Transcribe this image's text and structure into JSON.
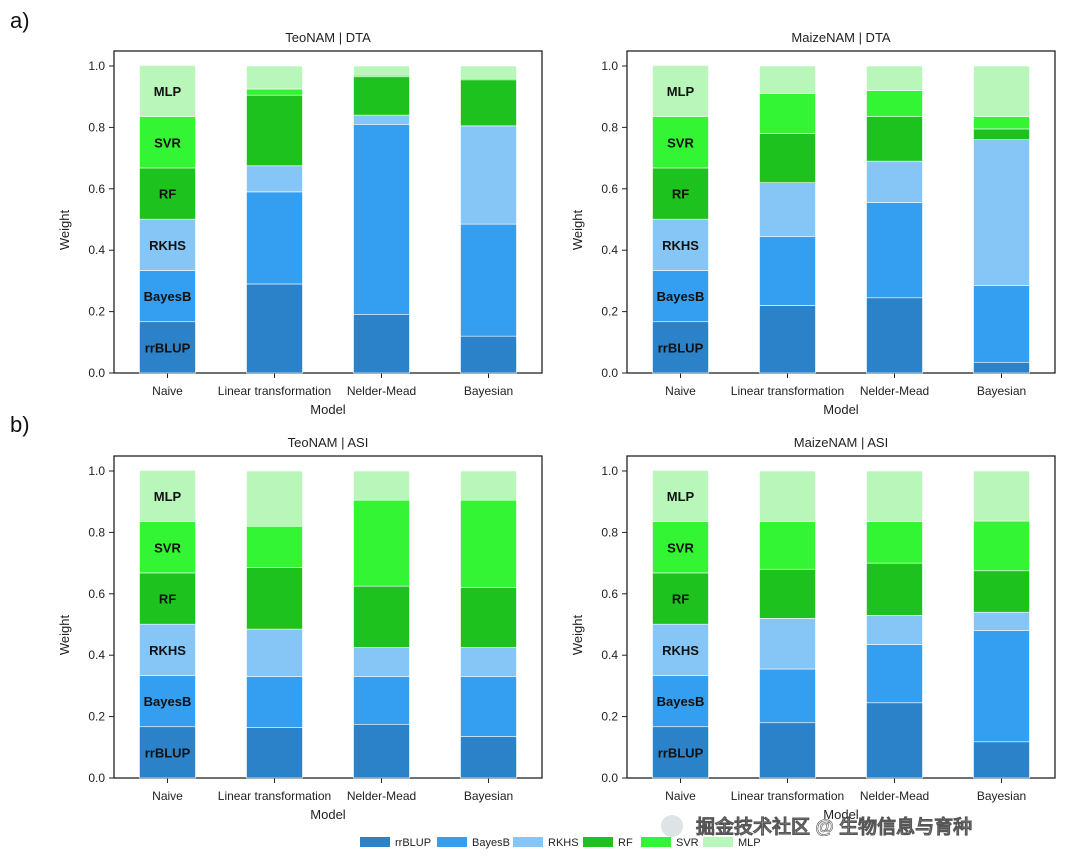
{
  "row_labels": [
    "a)",
    "b)"
  ],
  "colors": {
    "rrBLUP": "#2c82c9",
    "BayesB": "#349ff0",
    "RKHS": "#86c6f6",
    "RF": "#1ec21e",
    "SVR": "#33f533",
    "MLP": "#b9f6b9"
  },
  "legend": {
    "items": [
      "rrBLUP",
      "BayesB",
      "RKHS",
      "RF",
      "SVR",
      "MLP"
    ]
  },
  "watermark": {
    "text": "掘金技术社区 @ 生物信息与育种"
  },
  "chart_data": [
    {
      "type": "stacked-bar",
      "row": 0,
      "col": 0,
      "title": "TeoNAM | DTA",
      "xlabel": "Model",
      "ylabel": "Weight",
      "ylim": [
        0,
        1
      ],
      "yticks": [
        "0.0",
        "0.2",
        "0.4",
        "0.6",
        "0.8",
        "1.0"
      ],
      "categories": [
        "Naive",
        "Linear transformation",
        "Nelder-Mead",
        "Bayesian"
      ],
      "series": [
        {
          "name": "rrBLUP",
          "values": [
            0.167,
            0.29,
            0.19,
            0.12
          ]
        },
        {
          "name": "BayesB",
          "values": [
            0.167,
            0.3,
            0.62,
            0.365
          ]
        },
        {
          "name": "RKHS",
          "values": [
            0.167,
            0.085,
            0.03,
            0.32
          ]
        },
        {
          "name": "RF",
          "values": [
            0.167,
            0.23,
            0.125,
            0.15
          ]
        },
        {
          "name": "SVR",
          "values": [
            0.167,
            0.02,
            0.005,
            0.005
          ]
        },
        {
          "name": "MLP",
          "values": [
            0.167,
            0.075,
            0.03,
            0.04
          ]
        }
      ],
      "naive_labels": [
        "rrBLUP",
        "BayesB",
        "RKHS",
        "RF",
        "SVR",
        "MLP"
      ]
    },
    {
      "type": "stacked-bar",
      "row": 0,
      "col": 1,
      "title": "MaizeNAM | DTA",
      "xlabel": "Model",
      "ylabel": "Weight",
      "ylim": [
        0,
        1
      ],
      "yticks": [
        "0.0",
        "0.2",
        "0.4",
        "0.6",
        "0.8",
        "1.0"
      ],
      "categories": [
        "Naive",
        "Linear transformation",
        "Nelder-Mead",
        "Bayesian"
      ],
      "series": [
        {
          "name": "rrBLUP",
          "values": [
            0.167,
            0.22,
            0.245,
            0.035
          ]
        },
        {
          "name": "BayesB",
          "values": [
            0.167,
            0.225,
            0.31,
            0.25
          ]
        },
        {
          "name": "RKHS",
          "values": [
            0.167,
            0.175,
            0.135,
            0.475
          ]
        },
        {
          "name": "RF",
          "values": [
            0.167,
            0.16,
            0.145,
            0.035
          ]
        },
        {
          "name": "SVR",
          "values": [
            0.167,
            0.13,
            0.085,
            0.04
          ]
        },
        {
          "name": "MLP",
          "values": [
            0.167,
            0.09,
            0.08,
            0.165
          ]
        }
      ],
      "naive_labels": [
        "rrBLUP",
        "BayesB",
        "RKHS",
        "RF",
        "SVR",
        "MLP"
      ]
    },
    {
      "type": "stacked-bar",
      "row": 1,
      "col": 0,
      "title": "TeoNAM | ASI",
      "xlabel": "Model",
      "ylabel": "Weight",
      "ylim": [
        0,
        1
      ],
      "yticks": [
        "0.0",
        "0.2",
        "0.4",
        "0.6",
        "0.8",
        "1.0"
      ],
      "categories": [
        "Naive",
        "Linear transformation",
        "Nelder-Mead",
        "Bayesian"
      ],
      "series": [
        {
          "name": "rrBLUP",
          "values": [
            0.167,
            0.165,
            0.175,
            0.135
          ]
        },
        {
          "name": "BayesB",
          "values": [
            0.167,
            0.165,
            0.155,
            0.195
          ]
        },
        {
          "name": "RKHS",
          "values": [
            0.167,
            0.155,
            0.095,
            0.095
          ]
        },
        {
          "name": "RF",
          "values": [
            0.167,
            0.2,
            0.2,
            0.195
          ]
        },
        {
          "name": "SVR",
          "values": [
            0.167,
            0.135,
            0.28,
            0.285
          ]
        },
        {
          "name": "MLP",
          "values": [
            0.167,
            0.18,
            0.095,
            0.095
          ]
        }
      ],
      "naive_labels": [
        "rrBLUP",
        "BayesB",
        "RKHS",
        "RF",
        "SVR",
        "MLP"
      ]
    },
    {
      "type": "stacked-bar",
      "row": 1,
      "col": 1,
      "title": "MaizeNAM | ASI",
      "xlabel": "Model",
      "ylabel": "Weight",
      "ylim": [
        0,
        1
      ],
      "yticks": [
        "0.0",
        "0.2",
        "0.4",
        "0.6",
        "0.8",
        "1.0"
      ],
      "categories": [
        "Naive",
        "Linear transformation",
        "Nelder-Mead",
        "Bayesian"
      ],
      "series": [
        {
          "name": "rrBLUP",
          "values": [
            0.167,
            0.18,
            0.245,
            0.118
          ]
        },
        {
          "name": "BayesB",
          "values": [
            0.167,
            0.175,
            0.19,
            0.362
          ]
        },
        {
          "name": "RKHS",
          "values": [
            0.167,
            0.165,
            0.095,
            0.06
          ]
        },
        {
          "name": "RF",
          "values": [
            0.167,
            0.16,
            0.17,
            0.135
          ]
        },
        {
          "name": "SVR",
          "values": [
            0.167,
            0.155,
            0.135,
            0.162
          ]
        },
        {
          "name": "MLP",
          "values": [
            0.167,
            0.165,
            0.165,
            0.163
          ]
        }
      ],
      "naive_labels": [
        "rrBLUP",
        "BayesB",
        "RKHS",
        "RF",
        "SVR",
        "MLP"
      ]
    }
  ]
}
